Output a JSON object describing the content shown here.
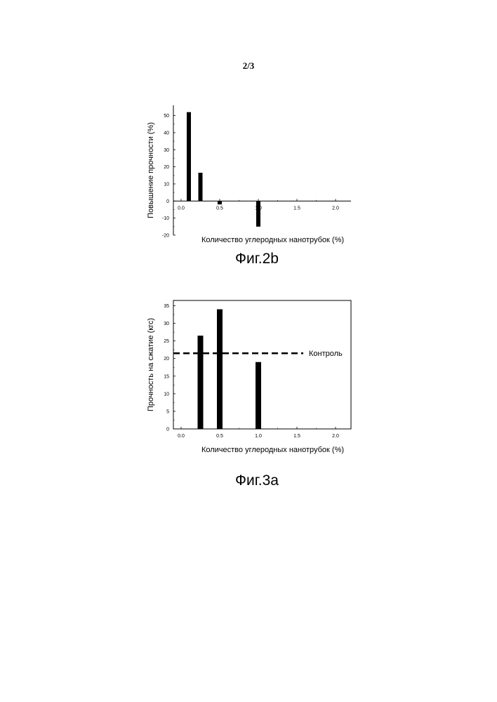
{
  "page": {
    "number": "2/3"
  },
  "chart_data": [
    {
      "type": "bar",
      "caption": "Фиг.2b",
      "xlabel": "Количество углеродных нанотрубок (%)",
      "ylabel": "Повышение прочности (%)",
      "xlim": [
        -0.1,
        2.2
      ],
      "ylim": [
        -20,
        56
      ],
      "xticks": [
        0.0,
        0.5,
        1.0,
        1.5,
        2.0
      ],
      "xtick_labels": [
        "0.0",
        "0.5",
        "1.0",
        "1.5",
        "2.0"
      ],
      "yticks": [
        -20,
        -10,
        0,
        10,
        20,
        30,
        40,
        50
      ],
      "ytick_labels": [
        "-20",
        "-10",
        "0",
        "10",
        "20",
        "30",
        "40",
        "50"
      ],
      "x": [
        0.1,
        0.25,
        0.5,
        1.0
      ],
      "values": [
        52,
        16.5,
        -2,
        -15
      ],
      "grid": false,
      "frame": "open",
      "bar_color": "#000000"
    },
    {
      "type": "bar",
      "caption": "Фиг.3a",
      "xlabel": "Количество углеродных нанотрубок (%)",
      "ylabel": "Прочность на сжатие (кгс)",
      "xlim": [
        -0.1,
        2.2
      ],
      "ylim": [
        0,
        36.5
      ],
      "xticks": [
        0.0,
        0.5,
        1.0,
        1.5,
        2.0
      ],
      "xtick_labels": [
        "0.0",
        "0.5",
        "1.0",
        "1.5",
        "2.0"
      ],
      "yticks": [
        0,
        5,
        10,
        15,
        20,
        25,
        30,
        35
      ],
      "ytick_labels": [
        "0",
        "5",
        "10",
        "15",
        "20",
        "25",
        "30",
        "35"
      ],
      "x": [
        0.25,
        0.5,
        1.0
      ],
      "values": [
        26.5,
        34,
        19
      ],
      "reference_line": {
        "value": 21.5,
        "label": "Контроль",
        "style": "dashed"
      },
      "grid": false,
      "frame": "box",
      "bar_color": "#000000"
    }
  ]
}
